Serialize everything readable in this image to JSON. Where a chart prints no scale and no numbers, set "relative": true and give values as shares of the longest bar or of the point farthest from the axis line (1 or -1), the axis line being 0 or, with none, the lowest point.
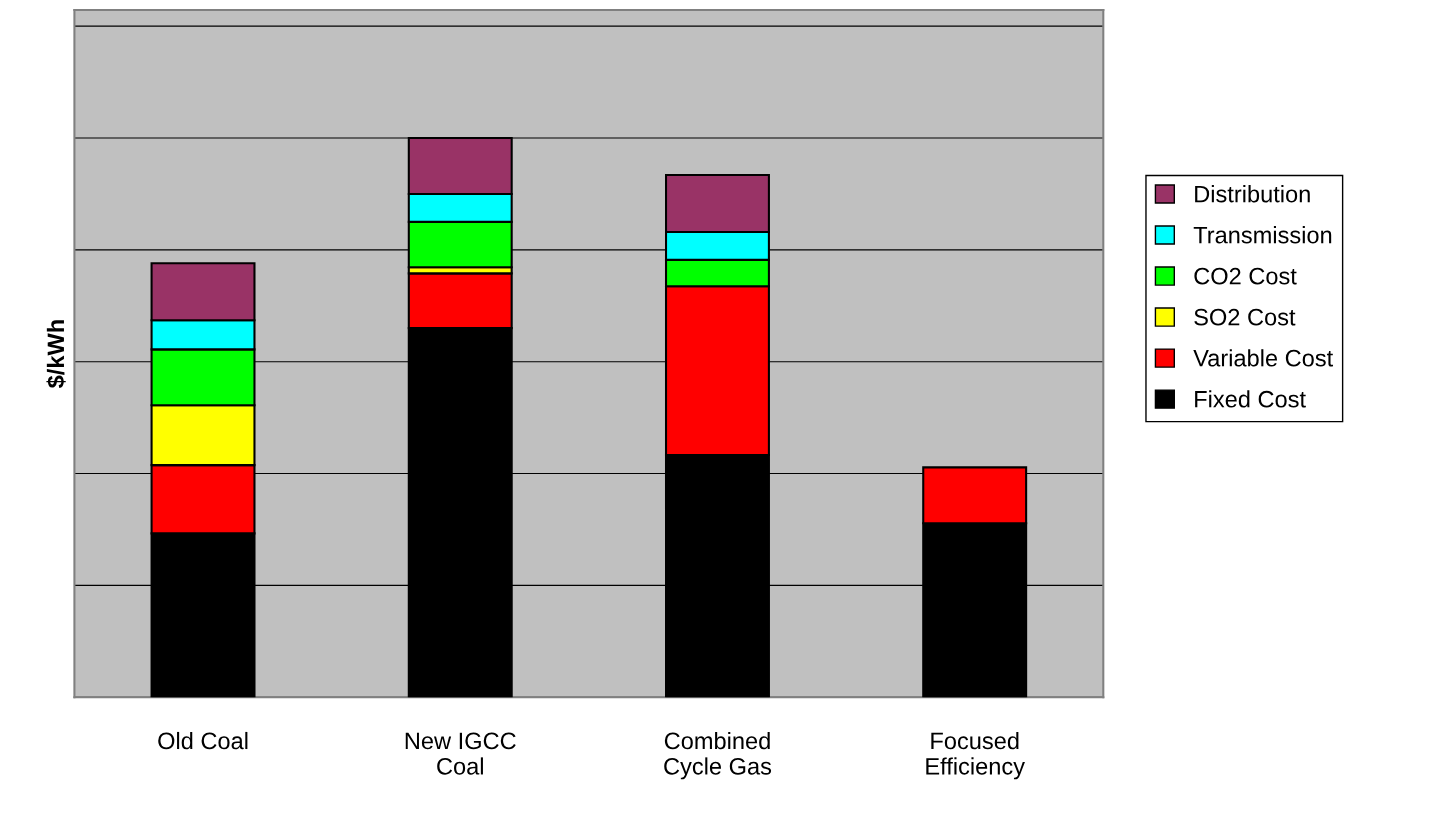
{
  "chart_data": {
    "type": "bar",
    "stacked": true,
    "relative": true,
    "ylabel": "$/kWh",
    "categories": [
      "Old Coal",
      "New IGCC\nCoal",
      "Combined\nCycle Gas",
      "Focused\nEfficiency"
    ],
    "series": [
      {
        "name": "Fixed Cost",
        "color": "#000000",
        "values": [
          0.293,
          0.66,
          0.433,
          0.311
        ]
      },
      {
        "name": "Variable Cost",
        "color": "#ff0000",
        "values": [
          0.122,
          0.098,
          0.302,
          0.1
        ]
      },
      {
        "name": "SO2 Cost",
        "color": "#ffff00",
        "values": [
          0.107,
          0.011,
          null,
          null
        ]
      },
      {
        "name": "CO2 Cost",
        "color": "#00ff00",
        "values": [
          0.1,
          0.081,
          0.047,
          null
        ]
      },
      {
        "name": "Transmission",
        "color": "#00ffff",
        "values": [
          0.052,
          0.05,
          0.05,
          null
        ]
      },
      {
        "name": "Distribution",
        "color": "#993366",
        "values": [
          0.102,
          0.1,
          0.102,
          null
        ]
      }
    ],
    "grid": "y",
    "legend": "right"
  }
}
